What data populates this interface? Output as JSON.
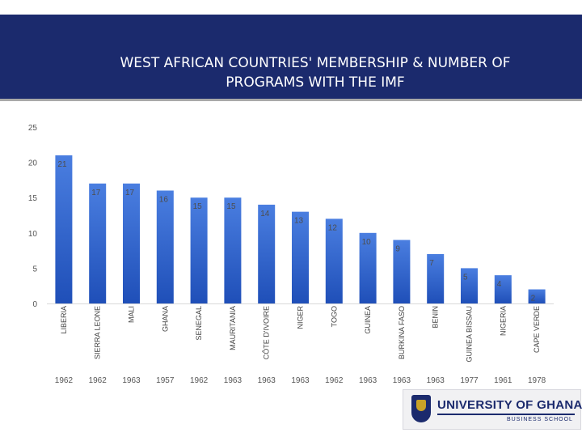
{
  "slide": {
    "title_line1": "WEST AFRICAN COUNTRIES' MEMBERSHIP & NUMBER OF",
    "title_line2": "PROGRAMS WITH THE IMF"
  },
  "logo": {
    "name": "UNIVERSITY OF GHANA",
    "subtitle": "BUSINESS SCHOOL",
    "icon": "crest-icon"
  },
  "colors": {
    "header_bg": "#1b2a6d",
    "bar_top": "#4a7ee0",
    "bar_bottom": "#1f4fb8",
    "label": "#555555"
  },
  "chart_data": {
    "type": "bar",
    "title": "WEST AFRICAN COUNTRIES' MEMBERSHIP & NUMBER OF PROGRAMS WITH THE IMF",
    "categories": [
      "LIBERIA",
      "SIERRA LEONE",
      "MALI",
      "GHANA",
      "SENEGAL",
      "MAURITANIA",
      "CÔTE D'IVOIRE",
      "NIGER",
      "TOGO",
      "GUINEA",
      "BURKINA FASO",
      "BENIN",
      "GUINEA BISSAU",
      "NIGERIA",
      "CAPE VERDE"
    ],
    "values": [
      21,
      17,
      17,
      16,
      15,
      15,
      14,
      13,
      12,
      10,
      9,
      7,
      5,
      4,
      2
    ],
    "membership_years": [
      "1962",
      "1962",
      "1963",
      "1957",
      "1962",
      "1963",
      "1963",
      "1963",
      "1962",
      "1963",
      "1963",
      "1963",
      "1977",
      "1961",
      "1978"
    ],
    "ylim": [
      0,
      25
    ],
    "yticks": [
      0,
      5,
      10,
      15,
      20,
      25
    ],
    "xlabel": "",
    "ylabel": "",
    "grid": false
  }
}
